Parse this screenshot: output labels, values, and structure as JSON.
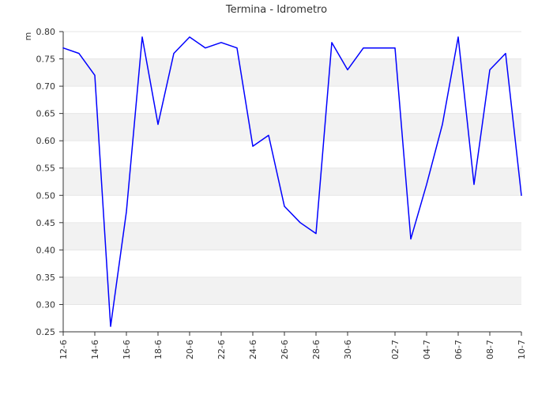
{
  "chart_data": {
    "type": "line",
    "title": "Termina - Idrometro",
    "xlabel": "",
    "ylabel": "m",
    "x": [
      "12-6",
      "13-6",
      "14-6",
      "15-6",
      "16-6",
      "17-6",
      "18-6",
      "19-6",
      "20-6",
      "21-6",
      "22-6",
      "23-6",
      "24-6",
      "25-6",
      "26-6",
      "27-6",
      "28-6",
      "29-6",
      "30-6",
      "01-7",
      "02-7",
      "02-7",
      "03-7",
      "04-7",
      "05-7",
      "06-7",
      "07-7",
      "08-7",
      "09-7",
      "10-7"
    ],
    "series": [
      {
        "values": [
          0.77,
          0.76,
          0.72,
          0.26,
          0.47,
          0.79,
          0.63,
          0.76,
          0.79,
          0.77,
          0.78,
          0.77,
          0.59,
          0.61,
          0.48,
          0.45,
          0.43,
          0.78,
          0.73,
          0.77,
          0.77,
          0.77,
          0.42,
          0.52,
          0.63,
          0.79,
          0.52,
          0.73,
          0.76,
          0.5
        ],
        "color": "#0000ff"
      }
    ],
    "x_tick_labels": [
      "12-6",
      "14-6",
      "16-6",
      "18-6",
      "20-6",
      "22-6",
      "24-6",
      "26-6",
      "28-6",
      "30-6",
      "02-7",
      "04-7",
      "06-7",
      "08-7",
      "10-7"
    ],
    "y_ticks": [
      "0.25",
      "0.30",
      "0.35",
      "0.40",
      "0.45",
      "0.50",
      "0.55",
      "0.60",
      "0.65",
      "0.70",
      "0.75",
      "0.80"
    ],
    "ylim": [
      0.25,
      0.8
    ],
    "grid": true
  }
}
